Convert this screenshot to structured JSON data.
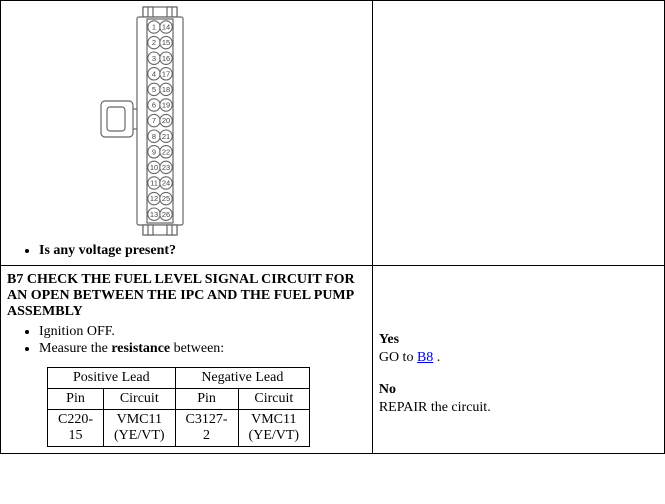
{
  "row1": {
    "question": "Is any voltage present?",
    "pins_left": [
      "1",
      "2",
      "3",
      "4",
      "5",
      "6",
      "7",
      "8",
      "9",
      "10",
      "11",
      "12",
      "13"
    ],
    "pins_right": [
      "14",
      "15",
      "16",
      "17",
      "18",
      "19",
      "20",
      "21",
      "22",
      "23",
      "24",
      "25",
      "26"
    ],
    "line_color": "#666666",
    "fill_color": "#ffffff",
    "text_color": "#444444"
  },
  "row2": {
    "title": "B7 CHECK THE FUEL LEVEL SIGNAL CIRCUIT FOR AN OPEN BETWEEN THE IPC AND THE FUEL PUMP ASSEMBLY",
    "bullets": [
      {
        "pre": "Ignition OFF."
      },
      {
        "pre": "Measure the ",
        "strong": "resistance",
        "post": " between:"
      }
    ],
    "lead_table": {
      "headers": {
        "pos": "Positive Lead",
        "neg": "Negative Lead",
        "pin": "Pin",
        "circuit": "Circuit"
      },
      "row": {
        "pos_pin_l1": "C220-",
        "pos_pin_l2": "15",
        "pos_circ_l1": "VMC11",
        "pos_circ_l2": "(YE/VT)",
        "neg_pin_l1": "C3127-",
        "neg_pin_l2": "2",
        "neg_circ_l1": "VMC11",
        "neg_circ_l2": "(YE/VT)"
      }
    },
    "answers": {
      "yes_label": "Yes",
      "yes_action_pre": "GO to ",
      "yes_link": "B8",
      "yes_action_post": " .",
      "no_label": "No",
      "no_action": "REPAIR the circuit."
    }
  }
}
